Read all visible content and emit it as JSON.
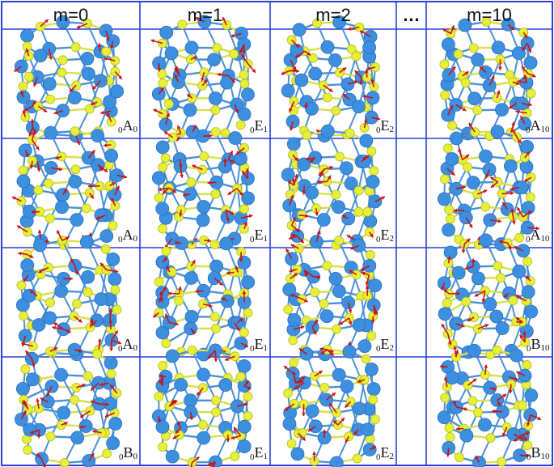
{
  "headers": [
    "m=0",
    "m=1",
    "m=2",
    "…",
    "m=10"
  ],
  "rows": [
    {
      "cells": [
        {
          "pre": "0",
          "sym": "A",
          "sub": "0"
        },
        {
          "pre": "0",
          "sym": "E",
          "sub": "1"
        },
        {
          "pre": "0",
          "sym": "E",
          "sub": "2"
        },
        null,
        {
          "pre": "0",
          "sym": "A",
          "sub": "10"
        }
      ]
    },
    {
      "cells": [
        {
          "pre": "0",
          "sym": "A",
          "sub": "0"
        },
        {
          "pre": "0",
          "sym": "E",
          "sub": "1"
        },
        {
          "pre": "0",
          "sym": "E",
          "sub": "2"
        },
        null,
        {
          "pre": "0",
          "sym": "A",
          "sub": "10"
        }
      ]
    },
    {
      "cells": [
        {
          "pre": "0",
          "sym": "A",
          "sub": "0"
        },
        {
          "pre": "0",
          "sym": "E",
          "sub": "1"
        },
        {
          "pre": "0",
          "sym": "E",
          "sub": "2"
        },
        null,
        {
          "pre": "0",
          "sym": "B",
          "sub": "10"
        }
      ]
    },
    {
      "cells": [
        {
          "pre": "0",
          "sym": "B",
          "sub": "0"
        },
        {
          "pre": "0",
          "sym": "E",
          "sub": "1"
        },
        {
          "pre": "0",
          "sym": "E",
          "sub": "2"
        },
        null,
        {
          "pre": "0",
          "sym": "B",
          "sub": "10"
        }
      ]
    }
  ],
  "colors": {
    "grid": "#2a3fd6",
    "atom_large": "#3d8fe0",
    "atom_small": "#e6ef3a",
    "bond_blue": "#4a90d9",
    "bond_yellow": "#d8e04a",
    "arrow": "#cc1111"
  }
}
